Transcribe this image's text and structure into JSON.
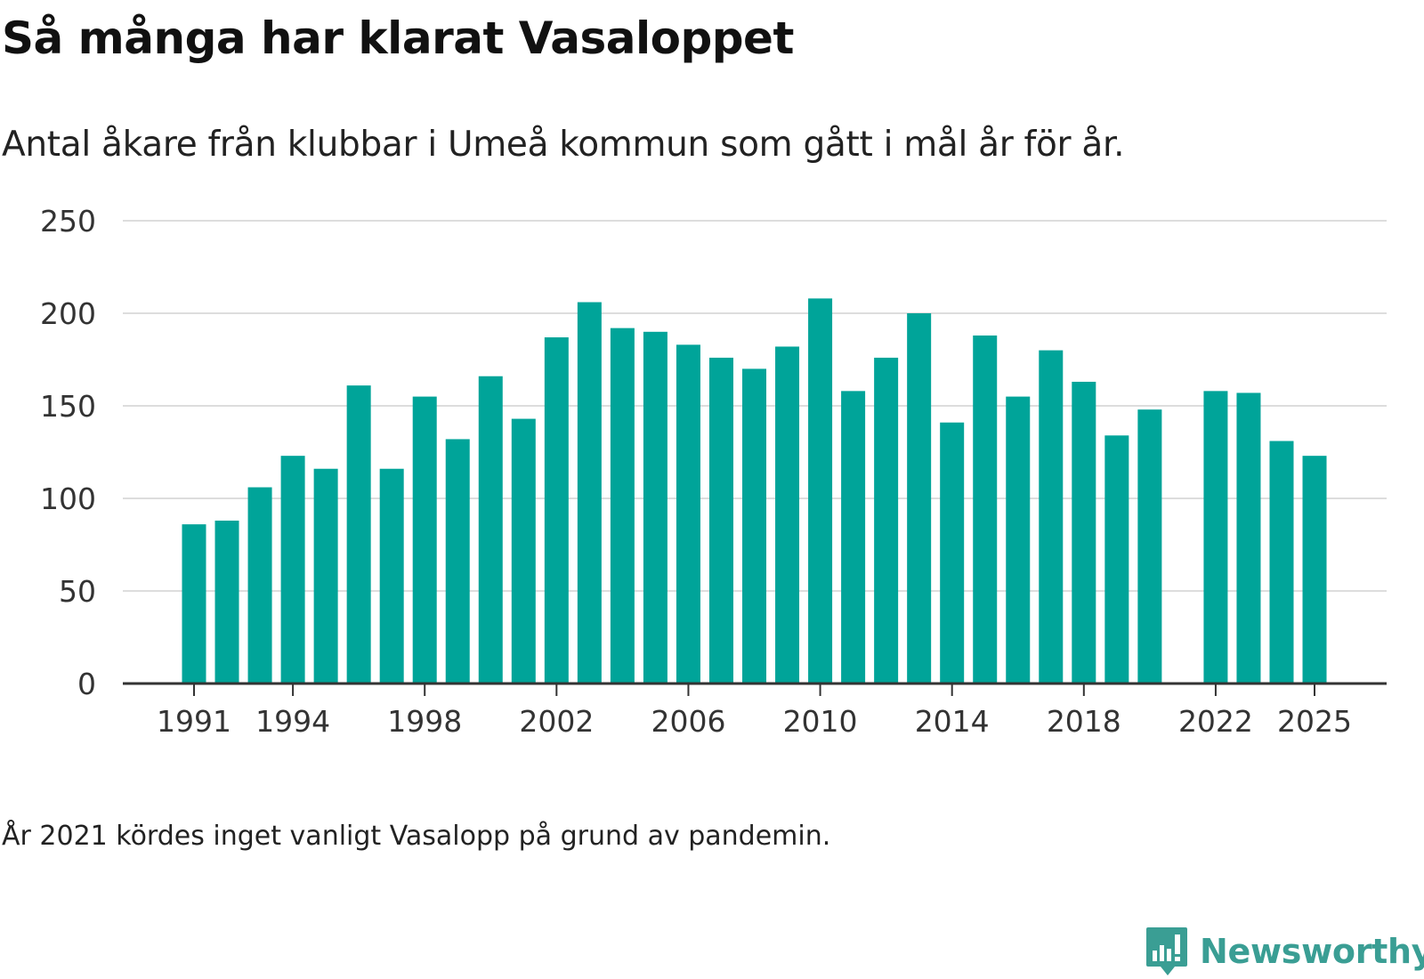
{
  "title": "Så många har klarat Vasaloppet",
  "subtitle": "Antal åkare från klubbar i Umeå kommun som gått i mål år för år.",
  "note": "År 2021 kördes inget vanligt Vasalopp på grund av pandemin.",
  "brand": {
    "name": "Newsworthy",
    "icon": "newsworthy-logo-icon",
    "color": "#3a9e94"
  },
  "colors": {
    "bar": "#00a499",
    "grid": "#dddddd",
    "axis": "#333333"
  },
  "chart_data": {
    "type": "bar",
    "title": "Så många har klarat Vasaloppet",
    "subtitle": "Antal åkare från klubbar i Umeå kommun som gått i mål år för år.",
    "xlabel": "",
    "ylabel": "",
    "ylim": [
      0,
      250
    ],
    "yticks": [
      0,
      50,
      100,
      150,
      200,
      250
    ],
    "xtick_labels": [
      "1991",
      "1994",
      "1998",
      "2002",
      "2006",
      "2010",
      "2014",
      "2018",
      "2022",
      "2025"
    ],
    "grid": true,
    "categories": [
      "1991",
      "1992",
      "1993",
      "1994",
      "1995",
      "1996",
      "1997",
      "1998",
      "1999",
      "2000",
      "2001",
      "2002",
      "2003",
      "2004",
      "2005",
      "2006",
      "2007",
      "2008",
      "2009",
      "2010",
      "2011",
      "2012",
      "2013",
      "2014",
      "2015",
      "2016",
      "2017",
      "2018",
      "2019",
      "2020",
      "2021",
      "2022",
      "2023",
      "2024",
      "2025"
    ],
    "values": [
      86,
      88,
      106,
      123,
      116,
      161,
      116,
      155,
      132,
      166,
      143,
      187,
      206,
      192,
      190,
      183,
      176,
      170,
      182,
      208,
      158,
      176,
      200,
      141,
      188,
      155,
      180,
      163,
      134,
      148,
      null,
      158,
      157,
      131,
      123
    ]
  }
}
